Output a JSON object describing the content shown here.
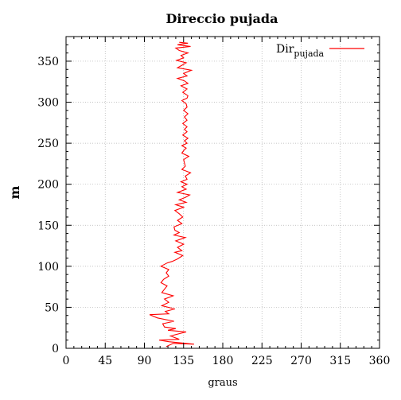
{
  "chart_data": {
    "type": "line",
    "title": "Direccio pujada",
    "xlabel": "graus",
    "ylabel": "m",
    "xlim": [
      0,
      360
    ],
    "ylim": [
      0,
      380
    ],
    "x_ticks": [
      0,
      45,
      90,
      135,
      180,
      225,
      270,
      315,
      360
    ],
    "y_ticks": [
      0,
      50,
      100,
      150,
      200,
      250,
      300,
      350
    ],
    "grid": true,
    "legend_position": "top-right",
    "series": [
      {
        "name": "Dir",
        "name_subscript": "pujada",
        "color": "#ff0000",
        "x": [
          115,
          123,
          147,
          118,
          107,
          130,
          120,
          138,
          117,
          126,
          113,
          111,
          124,
          105,
          96,
          118,
          114,
          125,
          110,
          118,
          113,
          123,
          110,
          113,
          116,
          109,
          112,
          118,
          115,
          118,
          109,
          116,
          122,
          128,
          134,
          125,
          133,
          128,
          135,
          126,
          137,
          124,
          130,
          125,
          124,
          133,
          128,
          134,
          130,
          125,
          135,
          126,
          138,
          130,
          137,
          142,
          128,
          138,
          133,
          139,
          132,
          139,
          137,
          143,
          133,
          137,
          136,
          135,
          141,
          133,
          135,
          138,
          133,
          139,
          136,
          140,
          134,
          139,
          136,
          139,
          134,
          139,
          136,
          140,
          135,
          139,
          138,
          133,
          139,
          140,
          134,
          139,
          132,
          140,
          136,
          128,
          139,
          135,
          144,
          128,
          133,
          138,
          127,
          135,
          132,
          140,
          130,
          126,
          143,
          128,
          133,
          140,
          130
        ],
        "y": [
          2,
          6,
          5,
          8,
          10,
          11,
          15,
          20,
          22,
          24,
          26,
          30,
          33,
          37,
          41,
          42,
          45,
          48,
          52,
          56,
          60,
          64,
          68,
          72,
          76,
          80,
          84,
          88,
          92,
          96,
          100,
          104,
          106,
          109,
          113,
          117,
          119,
          123,
          127,
          131,
          135,
          138,
          141,
          144,
          148,
          152,
          156,
          160,
          164,
          168,
          172,
          175,
          178,
          181,
          184,
          187,
          190,
          194,
          197,
          200,
          203,
          206,
          210,
          214,
          218,
          222,
          226,
          230,
          234,
          238,
          241,
          244,
          247,
          250,
          253,
          256,
          260,
          264,
          267,
          270,
          274,
          278,
          282,
          286,
          290,
          294,
          298,
          302,
          305,
          308,
          312,
          316,
          320,
          323,
          326,
          329,
          332,
          335,
          339,
          342,
          345,
          348,
          351,
          354,
          357,
          360,
          363,
          366,
          368,
          370,
          371,
          372,
          373
        ]
      }
    ]
  }
}
